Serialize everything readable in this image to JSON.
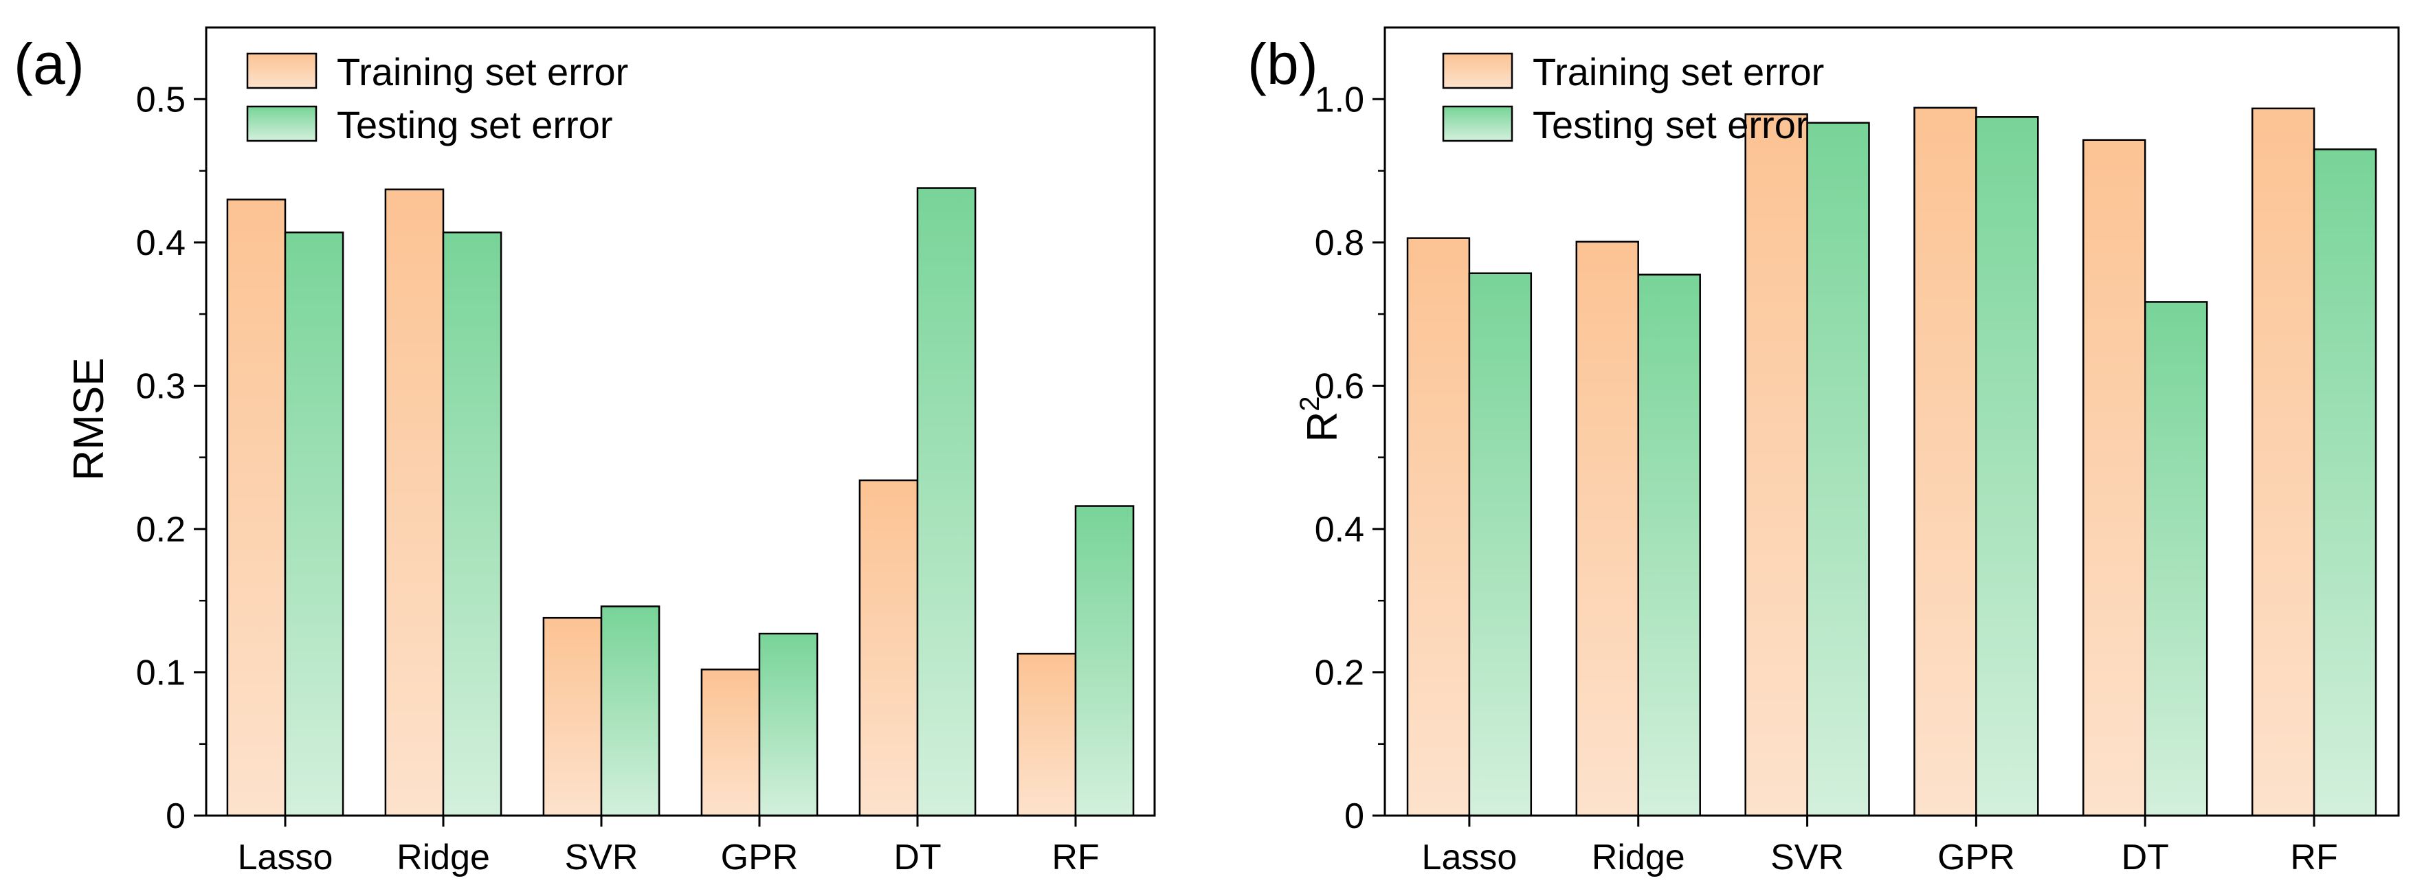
{
  "chart_data": [
    {
      "panel_label": "(a)",
      "type": "bar",
      "title": "",
      "xlabel": "",
      "ylabel": "RMSE",
      "ylim": [
        0,
        0.55
      ],
      "yticks": [
        "0",
        "0.1",
        "0.2",
        "0.3",
        "0.4",
        "0.5"
      ],
      "categories": [
        "Lasso",
        "Ridge",
        "SVR",
        "GPR",
        "DT",
        "RF"
      ],
      "legend_position": "top-left",
      "grid": false,
      "series": [
        {
          "name": "Training set error",
          "values": [
            0.43,
            0.437,
            0.138,
            0.102,
            0.234,
            0.113
          ]
        },
        {
          "name": "Testing set error",
          "values": [
            0.407,
            0.407,
            0.146,
            0.127,
            0.438,
            0.216
          ]
        }
      ]
    },
    {
      "panel_label": "(b)",
      "type": "bar",
      "title": "",
      "xlabel": "",
      "ylabel": "R",
      "ylabel_superscript": "2",
      "ylim": [
        0,
        1.1
      ],
      "yticks": [
        "0",
        "0.2",
        "0.4",
        "0.6",
        "0.8",
        "1.0"
      ],
      "categories": [
        "Lasso",
        "Ridge",
        "SVR",
        "GPR",
        "DT",
        "RF"
      ],
      "legend_position": "top-left",
      "grid": false,
      "series": [
        {
          "name": "Training set error",
          "values": [
            0.806,
            0.801,
            0.979,
            0.988,
            0.943,
            0.987
          ]
        },
        {
          "name": "Testing set error",
          "values": [
            0.757,
            0.755,
            0.967,
            0.975,
            0.717,
            0.93
          ]
        }
      ]
    }
  ],
  "colors": {
    "training_top": "#fcc393",
    "training_bottom": "#fde2cc",
    "testing_top": "#78d498",
    "testing_bottom": "#d3f0dc",
    "axis": "#000000"
  }
}
